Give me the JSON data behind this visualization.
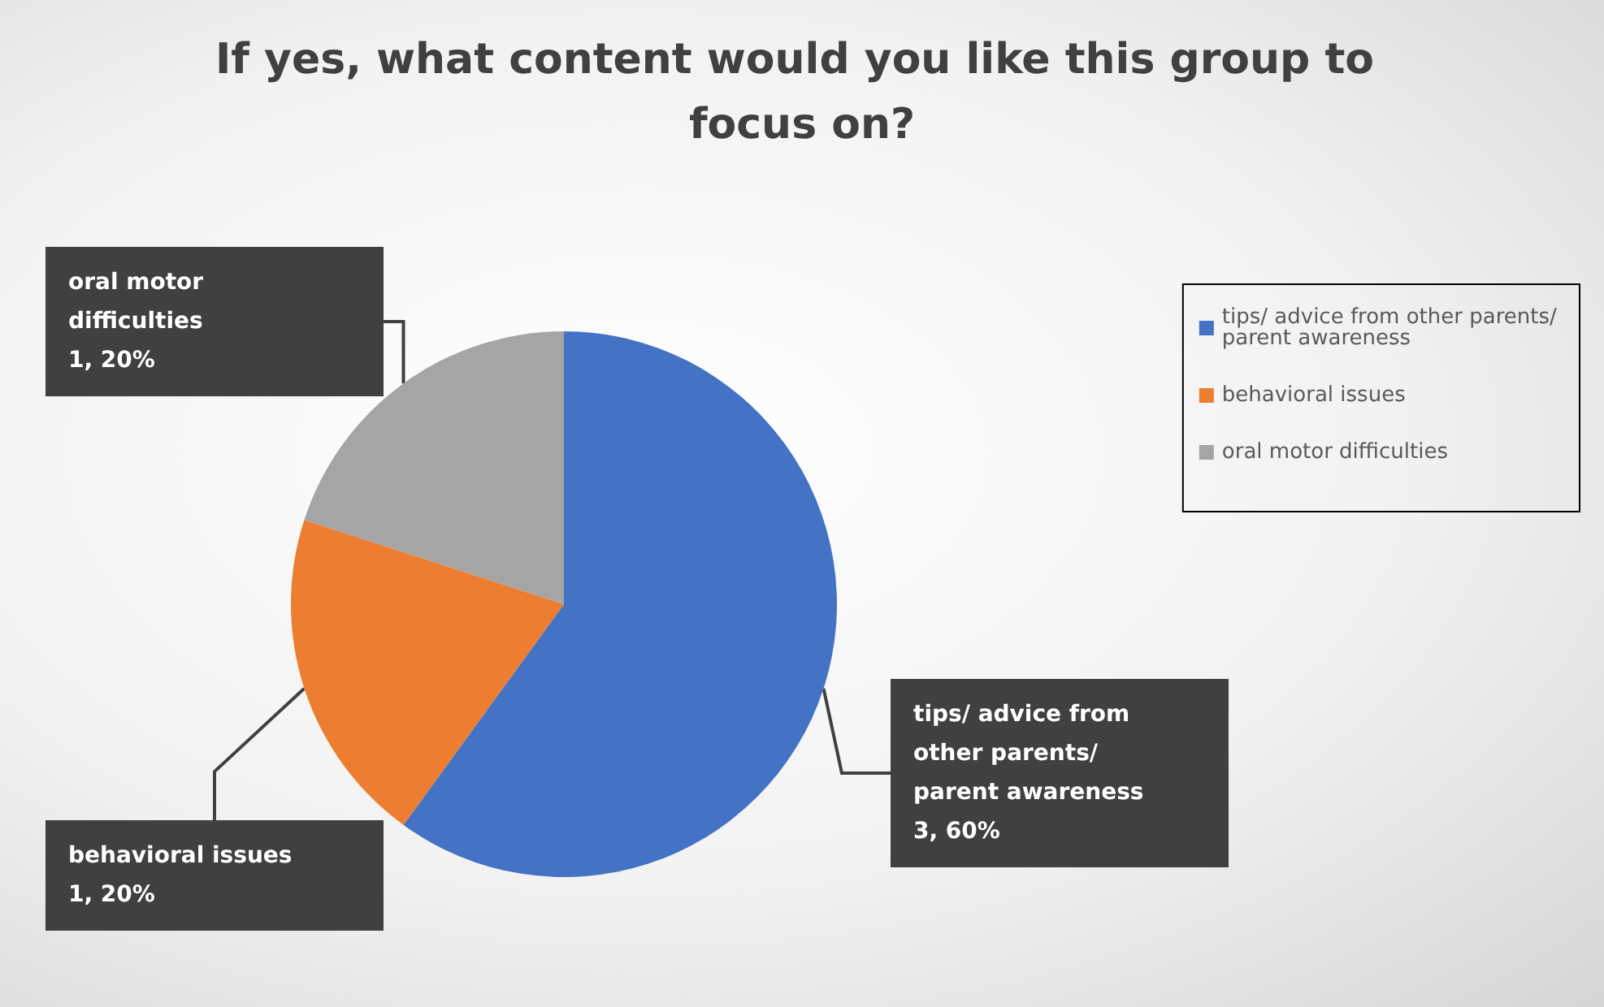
{
  "chart_data": {
    "type": "pie",
    "title": "If yes, what content would you like this group to focus on?",
    "categories": [
      "tips/ advice from other parents/ parent awareness",
      "behavioral issues",
      "oral motor difficulties"
    ],
    "values": [
      3,
      1,
      1
    ],
    "colors": [
      "#4472c4",
      "#ed7d31",
      "#a5a5a5"
    ],
    "value_labels": [
      "3, 60%",
      "1, 20%",
      "1, 20%"
    ],
    "legend": "right"
  }
}
